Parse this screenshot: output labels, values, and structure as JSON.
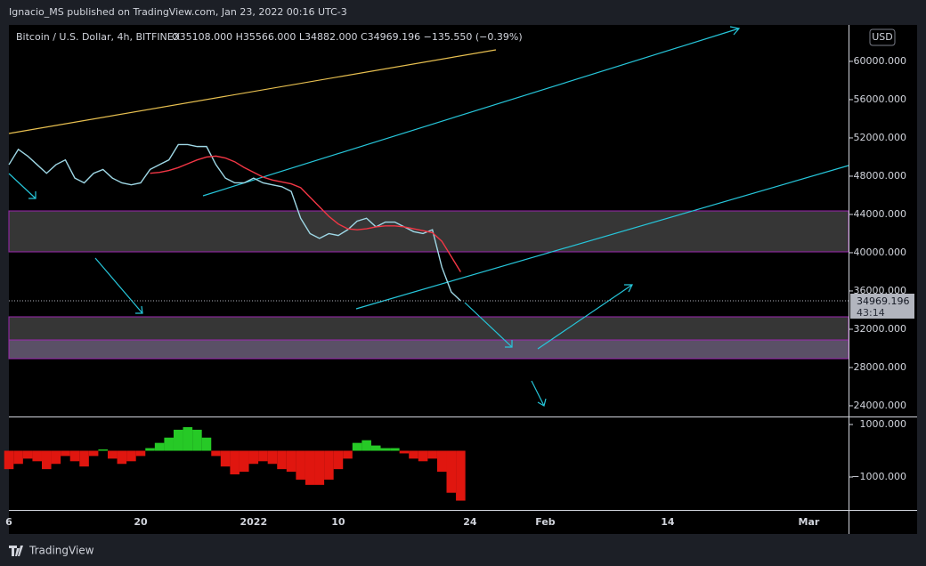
{
  "publisher": "Ignacio_MS published on TradingView.com, Jan 23, 2022 00:16 UTC-3",
  "symbol": "Bitcoin / U.S. Dollar, 4h, BITFINEX",
  "ohlc": "O35108.000 H35566.000 L34882.000 C34969.196 −135.550 (−0.39%)",
  "currency": "USD",
  "last_price_label": "34969.196",
  "countdown": "43:14",
  "brand": "TradingView",
  "chart_data": {
    "type": "line",
    "categories": [
      "6",
      null,
      null,
      null,
      null,
      null,
      null,
      null,
      null,
      null,
      null,
      null,
      null,
      null,
      "20",
      null,
      null,
      null,
      null,
      null,
      null,
      null,
      null,
      null,
      null,
      null,
      "2022",
      null,
      null,
      null,
      null,
      null,
      null,
      null,
      null,
      "10",
      null,
      null,
      null,
      null,
      null,
      null,
      null,
      null,
      null,
      null,
      null,
      null,
      null,
      "24",
      null,
      null,
      null,
      null,
      null,
      null,
      null,
      "Feb",
      null,
      null,
      null,
      null,
      null,
      null,
      null,
      null,
      null,
      null,
      null,
      null,
      "14",
      null,
      null,
      null,
      null,
      null,
      null,
      null,
      null,
      null,
      null,
      null,
      null,
      null,
      null,
      "Mar",
      null,
      null,
      null,
      null
    ],
    "ylim": [
      22880,
      63810
    ],
    "yticks": [
      {
        "value": 24000,
        "label": "24000.000"
      },
      {
        "value": 28000,
        "label": "28000.000"
      },
      {
        "value": 32000,
        "label": "32000.000"
      },
      {
        "value": 36000,
        "label": "36000.000"
      },
      {
        "value": 40000,
        "label": "40000.000"
      },
      {
        "value": 44000,
        "label": "44000.000"
      },
      {
        "value": 48000,
        "label": "48000.000"
      },
      {
        "value": 52000,
        "label": "52000.000"
      },
      {
        "value": 56000,
        "label": "56000.000"
      },
      {
        "value": 60000,
        "label": "60000.000"
      }
    ],
    "lower_ylim": [
      -2254,
      1271
    ],
    "lower_yticks": [
      {
        "value": 1000,
        "label": "1000.000"
      },
      {
        "value": -1000,
        "label": "−1000.000"
      }
    ],
    "series": [
      {
        "color": "#9fd8e6",
        "pane": "upper",
        "values": [
          49200,
          50800,
          50100,
          49200,
          48300,
          49200,
          49700,
          47800,
          47300,
          48300,
          48700,
          47800,
          47300,
          47100,
          47300,
          48700,
          49200,
          49700,
          51300,
          51300,
          51100,
          51100,
          49200,
          47800,
          47300,
          47300,
          47800,
          47300,
          47100,
          46900,
          46400,
          43600,
          42000,
          41500,
          42000,
          41800,
          42400,
          43300,
          43600,
          42700,
          43200,
          43200,
          42700,
          42200,
          42000,
          42400,
          38500,
          35900,
          34969.196,
          null,
          null,
          null,
          null,
          null,
          null,
          null,
          null,
          null,
          null,
          null,
          null,
          null,
          null,
          null,
          null,
          null,
          null,
          null,
          null,
          null,
          null,
          null,
          null,
          null,
          null,
          null,
          null,
          null,
          null,
          null,
          null,
          null,
          null,
          null,
          null,
          null,
          null,
          null,
          null,
          null
        ]
      },
      {
        "color": "#f23645",
        "pane": "upper",
        "values": [
          null,
          null,
          null,
          null,
          null,
          null,
          null,
          null,
          null,
          null,
          null,
          null,
          null,
          null,
          null,
          48300,
          48400,
          48600,
          48900,
          49300,
          49700,
          50000,
          50100,
          49900,
          49500,
          48900,
          48400,
          47900,
          47600,
          47400,
          47200,
          46800,
          45800,
          44800,
          43800,
          43000,
          42500,
          42400,
          42500,
          42700,
          42800,
          42800,
          42700,
          42500,
          42300,
          42100,
          41200,
          39600,
          38000,
          null,
          null,
          null,
          null,
          null,
          null,
          null,
          null,
          null,
          null,
          null,
          null,
          null,
          null,
          null,
          null,
          null,
          null,
          null,
          null,
          null,
          null,
          null,
          null,
          null,
          null,
          null,
          null,
          null,
          null,
          null,
          null,
          null,
          null,
          null,
          null,
          null,
          null,
          null,
          null,
          null
        ]
      },
      {
        "pane": "lower",
        "up_color": "#26c926",
        "down_color": "#e0160f",
        "values": [
          -700,
          -500,
          -300,
          -400,
          -700,
          -500,
          -200,
          -400,
          -600,
          -200,
          50,
          -300,
          -500,
          -400,
          -200,
          100,
          300,
          500,
          800,
          900,
          800,
          500,
          -200,
          -600,
          -900,
          -800,
          -500,
          -400,
          -500,
          -700,
          -800,
          -1100,
          -1300,
          -1300,
          -1100,
          -700,
          -300,
          300,
          400,
          200,
          100,
          100,
          -100,
          -300,
          -400,
          -300,
          -800,
          -1600,
          -1900,
          null,
          null,
          null,
          null,
          null,
          null,
          null,
          null,
          null,
          null,
          null,
          null,
          null,
          null,
          null,
          null,
          null,
          null,
          null,
          null,
          null,
          null,
          null,
          null,
          null,
          null,
          null,
          null,
          null,
          null,
          null,
          null,
          null,
          null,
          null,
          null,
          null,
          null,
          null,
          null,
          null
        ]
      }
    ]
  }
}
